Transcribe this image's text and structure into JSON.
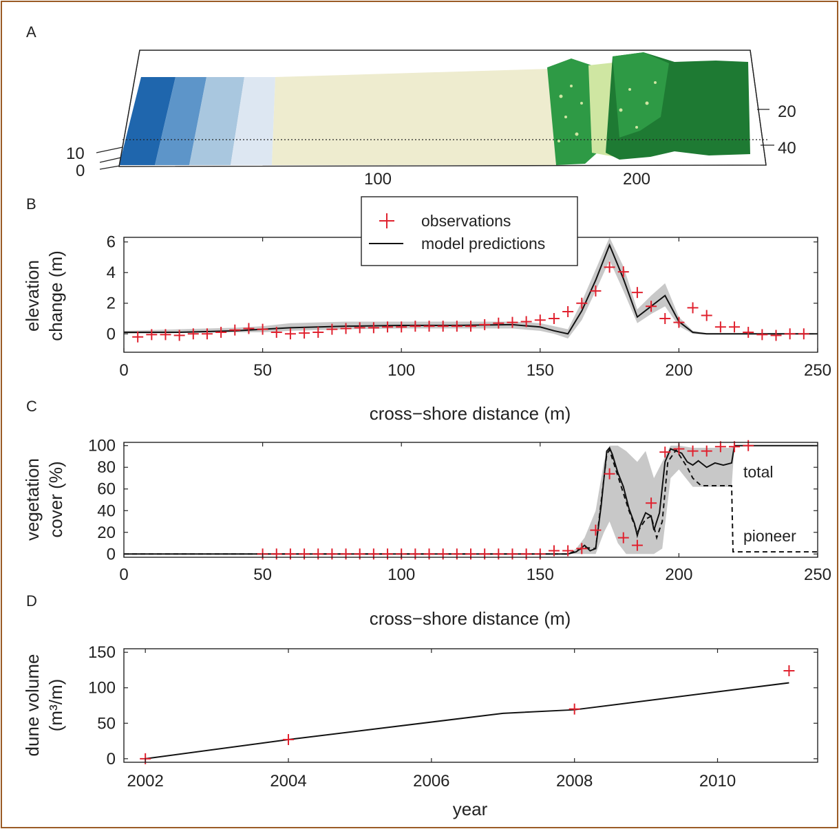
{
  "colors": {
    "frame": "#9a5a24",
    "observation": "#e0212e",
    "model": "#111111",
    "envelope": "#c8c8c8",
    "water": [
      "#1f66ad",
      "#5d95c9",
      "#a9c7df",
      "#dde7f2"
    ],
    "sand": "#eeeccf",
    "vegetation_dark": "#1e7a33",
    "vegetation_light": "#2e9a45",
    "vegetation_pale": "#cfe6a2"
  },
  "panels": {
    "a": {
      "letter": "A",
      "x_ticks": [
        "100",
        "200"
      ],
      "left_ticks": [
        "10",
        "0"
      ],
      "right_ticks": [
        "20",
        "40"
      ]
    },
    "b": {
      "letter": "B"
    },
    "c": {
      "letter": "C"
    },
    "d": {
      "letter": "D"
    }
  },
  "legend": {
    "observations": "observations",
    "model": "model predictions"
  },
  "chart_data": [
    {
      "panel": "B",
      "type": "line",
      "xlabel": "cross−shore distance (m)",
      "ylabel_lines": [
        "elevation",
        "change (m)"
      ],
      "xlim": [
        0,
        250
      ],
      "ylim": [
        -1.2,
        6.3
      ],
      "xticks": [
        0,
        50,
        100,
        150,
        200,
        250
      ],
      "yticks": [
        0,
        2,
        4,
        6
      ],
      "series": [
        {
          "name": "observations",
          "kind": "scatter",
          "x": [
            5,
            10,
            15,
            20,
            25,
            30,
            35,
            40,
            45,
            50,
            55,
            60,
            65,
            70,
            75,
            80,
            85,
            90,
            95,
            100,
            105,
            110,
            115,
            120,
            125,
            130,
            135,
            140,
            145,
            150,
            155,
            160,
            165,
            170,
            175,
            180,
            185,
            190,
            195,
            200,
            205,
            210,
            215,
            220,
            225,
            230,
            235,
            240,
            245
          ],
          "y": [
            -0.2,
            -0.05,
            -0.05,
            -0.1,
            0.0,
            0.0,
            0.1,
            0.25,
            0.35,
            0.3,
            0.1,
            0.0,
            0.05,
            0.1,
            0.3,
            0.35,
            0.4,
            0.4,
            0.45,
            0.45,
            0.5,
            0.5,
            0.5,
            0.5,
            0.5,
            0.6,
            0.7,
            0.75,
            0.8,
            0.9,
            1.0,
            1.45,
            2.0,
            2.8,
            4.35,
            4.05,
            2.7,
            1.8,
            1.0,
            0.75,
            1.7,
            1.2,
            0.45,
            0.45,
            0.1,
            -0.05,
            -0.1,
            0.0,
            0.0
          ]
        },
        {
          "name": "model predictions",
          "kind": "line",
          "x": [
            0,
            20,
            40,
            50,
            60,
            80,
            100,
            120,
            140,
            150,
            155,
            160,
            165,
            170,
            175,
            180,
            185,
            190,
            195,
            200,
            205,
            210,
            220,
            250
          ],
          "y": [
            0.1,
            0.1,
            0.2,
            0.3,
            0.4,
            0.5,
            0.55,
            0.55,
            0.6,
            0.45,
            0.2,
            0.0,
            1.5,
            3.5,
            5.8,
            3.6,
            1.1,
            1.8,
            2.5,
            0.8,
            0.1,
            0.0,
            0.0,
            0.0
          ]
        },
        {
          "name": "",
          "kind": "envelope",
          "x": [
            0,
            40,
            50,
            60,
            80,
            100,
            120,
            140,
            150,
            155,
            160,
            165,
            170,
            175,
            180,
            185,
            190,
            195,
            200,
            205,
            210,
            250
          ],
          "lower": [
            0.0,
            0.1,
            0.1,
            0.2,
            0.3,
            0.35,
            0.35,
            0.35,
            0.2,
            0.0,
            -0.3,
            0.9,
            2.8,
            4.8,
            2.8,
            0.7,
            1.3,
            1.8,
            0.5,
            0.0,
            -0.05,
            -0.05
          ],
          "upper": [
            0.2,
            0.4,
            0.5,
            0.7,
            0.8,
            0.8,
            0.8,
            0.8,
            0.7,
            0.5,
            0.3,
            2.1,
            4.2,
            6.3,
            4.4,
            1.6,
            2.5,
            3.3,
            1.1,
            0.2,
            0.05,
            0.05
          ]
        }
      ]
    },
    {
      "panel": "C",
      "type": "line",
      "xlabel": "cross−shore distance (m)",
      "ylabel_lines": [
        "vegetation",
        "cover (%)"
      ],
      "xlim": [
        0,
        250
      ],
      "ylim": [
        -3,
        103
      ],
      "xticks": [
        0,
        50,
        100,
        150,
        200,
        250
      ],
      "yticks": [
        0,
        20,
        40,
        60,
        80,
        100
      ],
      "annotations": [
        "total",
        "pioneer"
      ],
      "series": [
        {
          "name": "observations",
          "kind": "scatter",
          "x": [
            50,
            55,
            60,
            65,
            70,
            75,
            80,
            85,
            90,
            95,
            100,
            105,
            110,
            115,
            120,
            125,
            130,
            135,
            140,
            145,
            150,
            155,
            160,
            165,
            170,
            175,
            180,
            185,
            190,
            195,
            200,
            205,
            210,
            215,
            220,
            225
          ],
          "y": [
            0,
            0,
            0,
            0,
            0,
            0,
            0,
            0,
            0,
            0,
            0,
            0,
            0,
            0,
            0,
            0,
            0,
            0,
            0,
            0,
            0,
            3,
            3,
            5,
            22,
            74,
            15,
            8,
            47,
            94,
            97,
            95,
            95,
            99,
            99,
            100
          ]
        },
        {
          "name": "total",
          "kind": "line",
          "x": [
            0,
            160,
            163,
            166,
            168,
            170,
            172,
            174,
            175,
            176,
            178,
            180,
            182,
            184,
            185,
            186,
            188,
            190,
            191,
            193,
            195,
            197,
            199,
            201,
            203,
            205,
            207,
            210,
            213,
            216,
            219,
            220,
            250
          ],
          "y": [
            0,
            0,
            2,
            8,
            3,
            5,
            45,
            95,
            98,
            92,
            75,
            62,
            42,
            28,
            17,
            26,
            38,
            35,
            22,
            38,
            85,
            97,
            95,
            93,
            85,
            82,
            86,
            80,
            84,
            82,
            84,
            100,
            100
          ]
        },
        {
          "name": "pioneer",
          "kind": "dashed",
          "x": [
            0,
            160,
            166,
            170,
            174,
            175,
            178,
            182,
            185,
            188,
            190,
            192,
            194,
            196,
            199,
            203,
            205,
            208,
            218,
            219,
            219.5,
            250
          ],
          "y": [
            0,
            0,
            6,
            5,
            92,
            96,
            72,
            40,
            20,
            32,
            35,
            15,
            30,
            85,
            96,
            80,
            70,
            63,
            63,
            63,
            2,
            2
          ]
        },
        {
          "name": "",
          "kind": "envelope",
          "x": [
            0,
            160,
            163,
            166,
            170,
            173,
            175,
            178,
            181,
            185,
            188,
            191,
            194,
            197,
            200,
            205,
            210,
            219,
            220,
            250
          ],
          "lower": [
            0,
            0,
            0,
            0,
            0,
            20,
            30,
            10,
            0,
            0,
            0,
            0,
            5,
            70,
            78,
            62,
            62,
            62,
            100,
            100
          ],
          "upper": [
            0,
            0,
            5,
            15,
            40,
            85,
            100,
            100,
            95,
            85,
            95,
            70,
            85,
            100,
            100,
            98,
            98,
            98,
            100,
            100
          ]
        }
      ]
    },
    {
      "panel": "D",
      "type": "line",
      "xlabel": "year",
      "ylabel_lines": [
        "dune volume",
        "(m³/m)"
      ],
      "xlim": [
        2001.7,
        2011.4
      ],
      "ylim": [
        -5,
        155
      ],
      "xticks": [
        2002,
        2004,
        2006,
        2008,
        2010
      ],
      "yticks": [
        0,
        50,
        100,
        150
      ],
      "series": [
        {
          "name": "observations",
          "kind": "scatter",
          "x": [
            2002,
            2004,
            2008,
            2011
          ],
          "y": [
            0,
            27,
            70,
            124
          ]
        },
        {
          "name": "model predictions",
          "kind": "line",
          "x": [
            2002,
            2004,
            2007,
            2008,
            2011
          ],
          "y": [
            0,
            27,
            64,
            69,
            107
          ]
        }
      ]
    }
  ]
}
